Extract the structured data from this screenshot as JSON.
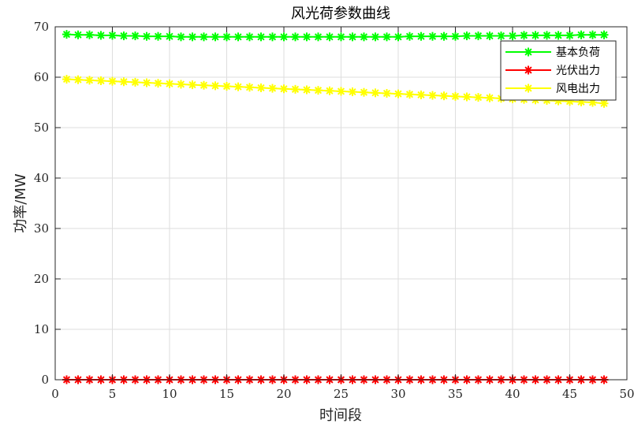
{
  "chart_data": {
    "type": "line",
    "title": "风光荷参数曲线",
    "xlabel": "时间段",
    "ylabel": "功率/MW",
    "xlim": [
      0,
      50
    ],
    "ylim": [
      0,
      70
    ],
    "xticks": [
      0,
      5,
      10,
      15,
      20,
      25,
      30,
      35,
      40,
      45,
      50
    ],
    "yticks": [
      0,
      10,
      20,
      30,
      40,
      50,
      60,
      70
    ],
    "grid": true,
    "legend_position": "top-right",
    "marker": "asterisk",
    "x": [
      1,
      2,
      3,
      4,
      5,
      6,
      7,
      8,
      9,
      10,
      11,
      12,
      13,
      14,
      15,
      16,
      17,
      18,
      19,
      20,
      21,
      22,
      23,
      24,
      25,
      26,
      27,
      28,
      29,
      30,
      31,
      32,
      33,
      34,
      35,
      36,
      37,
      38,
      39,
      40,
      41,
      42,
      43,
      44,
      45,
      46,
      47,
      48
    ],
    "series": [
      {
        "name": "基本负荷",
        "color": "#00ff00",
        "values": [
          68.5,
          68.4,
          68.4,
          68.3,
          68.3,
          68.2,
          68.2,
          68.1,
          68.1,
          68.1,
          68.0,
          68.0,
          68.0,
          68.0,
          68.0,
          68.0,
          68.0,
          68.0,
          68.0,
          68.0,
          68.0,
          68.0,
          68.0,
          68.0,
          68.0,
          68.0,
          68.0,
          68.0,
          68.0,
          68.0,
          68.1,
          68.1,
          68.1,
          68.1,
          68.1,
          68.2,
          68.2,
          68.2,
          68.2,
          68.2,
          68.3,
          68.3,
          68.3,
          68.3,
          68.3,
          68.4,
          68.4,
          68.4
        ]
      },
      {
        "name": "光伏出力",
        "color": "#ff0000",
        "values": [
          0,
          0,
          0,
          0,
          0,
          0,
          0,
          0,
          0,
          0,
          0,
          0,
          0,
          0,
          0,
          0,
          0,
          0,
          0,
          0,
          0,
          0,
          0,
          0,
          0,
          0,
          0,
          0,
          0,
          0,
          0,
          0,
          0,
          0,
          0,
          0,
          0,
          0,
          0,
          0,
          0,
          0,
          0,
          0,
          0,
          0,
          0,
          0
        ]
      },
      {
        "name": "风电出力",
        "color": "#ffff00",
        "values": [
          59.6,
          59.5,
          59.4,
          59.3,
          59.2,
          59.1,
          59.0,
          58.9,
          58.8,
          58.7,
          58.6,
          58.5,
          58.4,
          58.3,
          58.2,
          58.1,
          58.0,
          57.9,
          57.8,
          57.7,
          57.6,
          57.5,
          57.4,
          57.3,
          57.2,
          57.1,
          57.0,
          56.9,
          56.8,
          56.7,
          56.6,
          56.5,
          56.4,
          56.3,
          56.2,
          56.1,
          56.0,
          55.9,
          55.8,
          55.7,
          55.6,
          55.5,
          55.4,
          55.3,
          55.2,
          55.1,
          55.0,
          54.8
        ]
      }
    ]
  }
}
